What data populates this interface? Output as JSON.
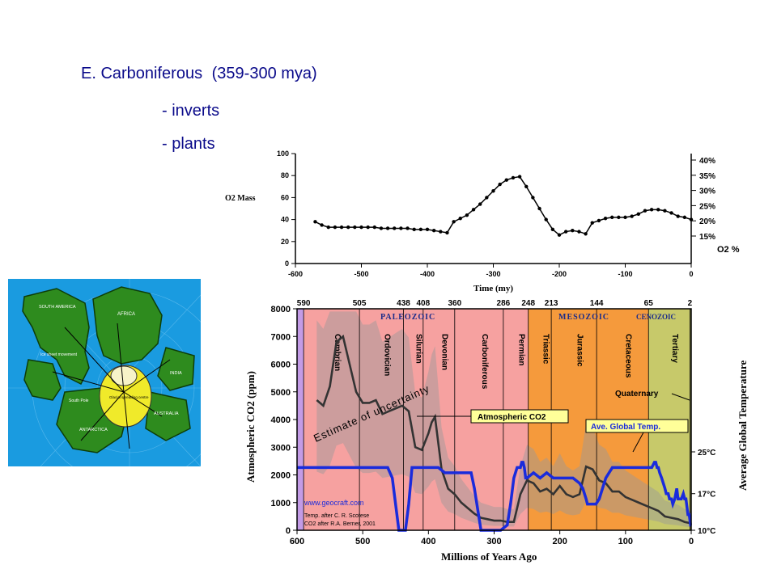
{
  "slide": {
    "title_period": "E. Carboniferous",
    "title_range": "(359-300 mya)",
    "bullets": [
      "- inverts",
      "- plants"
    ]
  },
  "map": {
    "labels": [
      "SOUTH AMERICA",
      "AFRICA",
      "ANTARCTICA",
      "AUSTRALIA",
      "INDIA",
      "Ice sheet movement",
      "South Pole",
      "Glacial spreading centre"
    ],
    "colors": {
      "ocean": "#1a9be0",
      "land": "#2e8b1e",
      "ice": "#f0ea2a"
    }
  },
  "colors": {
    "o2_line": "#000000",
    "co2_line": "#333333",
    "temp_line": "#1a2bdc",
    "paleozoic": "#f6a1a0",
    "mesozoic": "#f59a3c",
    "cenozoic": "#c7c96a",
    "cambrian_strip": "#c39be6",
    "uncertainty": "#9a9a9a"
  },
  "chart_data": [
    {
      "type": "line",
      "ylabel": "O2 Mass",
      "right_label": "O2 %",
      "xlabel": "Time (my)",
      "xlim": [
        -600,
        0
      ],
      "ylim": [
        0,
        100
      ],
      "x_ticks": [
        "-600",
        "-500",
        "-400",
        "-300",
        "-200",
        "-100",
        "0"
      ],
      "y_ticks": [
        "0",
        "20",
        "40",
        "60",
        "80",
        "100"
      ],
      "right_ticks": [
        "15%",
        "20%",
        "25%",
        "30%",
        "35%",
        "40%"
      ],
      "series": [
        {
          "x": [
            -570,
            -560,
            -550,
            -540,
            -530,
            -520,
            -510,
            -500,
            -490,
            -480,
            -470,
            -460,
            -450,
            -440,
            -430,
            -420,
            -410,
            -400,
            -390,
            -380,
            -370,
            -360,
            -350,
            -340,
            -330,
            -320,
            -310,
            -300,
            -290,
            -280,
            -270,
            -260,
            -250,
            -240,
            -230,
            -220,
            -210,
            -200,
            -190,
            -180,
            -170,
            -160,
            -150,
            -140,
            -130,
            -120,
            -110,
            -100,
            -90,
            -80,
            -70,
            -60,
            -50,
            -40,
            -30,
            -20,
            -10,
            0
          ],
          "y": [
            38,
            35,
            33,
            33,
            33,
            33,
            33,
            33,
            33,
            33,
            32,
            32,
            32,
            32,
            32,
            31,
            31,
            31,
            30,
            29,
            28,
            38,
            41,
            44,
            49,
            54,
            60,
            66,
            72,
            76,
            78,
            79,
            70,
            60,
            50,
            40,
            31,
            26,
            29,
            30,
            29,
            27,
            37,
            39,
            41,
            42,
            42,
            42,
            43,
            45,
            48,
            49,
            49,
            48,
            46,
            43,
            42,
            40
          ]
        }
      ]
    },
    {
      "type": "line",
      "xlabel": "Millions of Years Ago",
      "ylabel": "Atmospheric CO2 (ppm)",
      "right_label": "Average Global Temperature",
      "xlim": [
        600,
        0
      ],
      "ylim": [
        0,
        8000
      ],
      "x_ticks": [
        "600",
        "500",
        "400",
        "300",
        "200",
        "100",
        "0"
      ],
      "y_ticks": [
        "0",
        "1000",
        "2000",
        "3000",
        "4000",
        "5000",
        "6000",
        "7000",
        "8000"
      ],
      "temp_ticks": [
        "10°C",
        "17°C",
        "25°C"
      ],
      "top_ticks": [
        "590",
        "505",
        "438",
        "408",
        "360",
        "286",
        "248",
        "213",
        "144",
        "65",
        "2"
      ],
      "eras": [
        "PALEOZOIC",
        "MESOZOIC",
        "CENOZOIC"
      ],
      "periods": [
        "Cambrian",
        "Ordovician",
        "Silurian",
        "Devonian",
        "Carboniferous",
        "Permian",
        "Triassic",
        "Jurassic",
        "Cretaceous",
        "Tertiary"
      ],
      "annotations": [
        "Estimate of uncertainty",
        "Atmospheric CO2",
        "Ave. Global Temp.",
        "Quaternary"
      ],
      "credits": [
        "www.geocraft.com",
        "Temp. after C. R. Scotese",
        "CO2 after R.A. Berner, 2001"
      ],
      "series": [
        {
          "name": "Atmospheric CO2",
          "x": [
            570,
            560,
            550,
            540,
            530,
            520,
            510,
            500,
            490,
            480,
            470,
            460,
            450,
            440,
            430,
            420,
            410,
            400,
            395,
            390,
            380,
            370,
            360,
            350,
            340,
            330,
            320,
            310,
            300,
            290,
            280,
            270,
            260,
            250,
            240,
            230,
            220,
            210,
            200,
            190,
            180,
            170,
            160,
            150,
            140,
            130,
            120,
            110,
            100,
            90,
            80,
            70,
            60,
            50,
            40,
            30,
            20,
            10,
            0
          ],
          "y": [
            4700,
            4500,
            5200,
            6800,
            7000,
            6000,
            5000,
            4600,
            4600,
            4700,
            4200,
            4300,
            4400,
            4500,
            4300,
            3000,
            2900,
            3500,
            3900,
            4100,
            2200,
            1500,
            1300,
            1000,
            800,
            600,
            450,
            400,
            350,
            350,
            300,
            300,
            1300,
            1800,
            1700,
            1400,
            1500,
            1300,
            1600,
            1300,
            1200,
            1300,
            2300,
            2200,
            1800,
            1700,
            1400,
            1400,
            1200,
            1100,
            1000,
            900,
            800,
            700,
            500,
            450,
            400,
            300,
            250
          ]
        },
        {
          "name": "Ave. Global Temp.",
          "unit": "°C",
          "x": [
            600,
            580,
            560,
            540,
            520,
            500,
            480,
            470,
            462,
            455,
            450,
            445,
            440,
            435,
            430,
            425,
            420,
            410,
            400,
            395,
            390,
            385,
            375,
            350,
            340,
            335,
            330,
            320,
            310,
            300,
            290,
            280,
            275,
            270,
            265,
            260,
            258,
            256,
            254,
            252,
            250,
            240,
            230,
            220,
            210,
            200,
            190,
            180,
            170,
            165,
            160,
            158,
            155,
            150,
            145,
            140,
            135,
            130,
            125,
            120,
            110,
            100,
            90,
            80,
            70,
            65,
            60,
            56,
            54,
            52,
            50,
            48,
            45,
            40,
            38,
            35,
            33,
            30,
            28,
            25,
            22,
            20,
            15,
            12,
            10,
            8,
            5,
            3,
            2,
            1,
            0
          ],
          "y": [
            22,
            22,
            22,
            22,
            22,
            22,
            22,
            22,
            22,
            20,
            15,
            10,
            10,
            10,
            15,
            22,
            22,
            22,
            22,
            22,
            22,
            22,
            21,
            21,
            21,
            21,
            18,
            10,
            10,
            10,
            10,
            11,
            15,
            20,
            22,
            22,
            23,
            23,
            22,
            20,
            20,
            21,
            20,
            21,
            20,
            20,
            20,
            20,
            19,
            18,
            16,
            15,
            15,
            15,
            15,
            16,
            18,
            20,
            21,
            22,
            22,
            22,
            22,
            22,
            22,
            22,
            22,
            23,
            23,
            22,
            22,
            21,
            20,
            18,
            17,
            17,
            16,
            16,
            15,
            16,
            18,
            16,
            16,
            17,
            16,
            16,
            13,
            13,
            12,
            11,
            11
          ]
        }
      ]
    }
  ]
}
